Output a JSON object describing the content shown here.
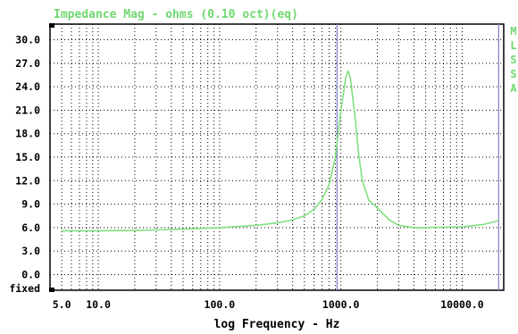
{
  "colors": {
    "background": "#ffffff",
    "plot_border": "#000000",
    "grid": "#000000",
    "trace": "#7fe07f",
    "title": "#6fd86f",
    "side_label": "#6fd86f",
    "cursor_line": "#8080c8",
    "marker": "#000000"
  },
  "chart_data": {
    "type": "line",
    "title": "Impedance Mag - ohms (0.10 oct)(eq)",
    "xlabel": "log Frequency - Hz",
    "ylabel": "",
    "x_scale": "log",
    "xlim": [
      4.0,
      22000.0
    ],
    "ylim": [
      -2.0,
      32.0
    ],
    "x_ticks": [
      5.0,
      10.0,
      100.0,
      1000.0,
      10000.0
    ],
    "x_tick_labels": [
      "5.0",
      "10.0",
      "100.0",
      "1000.0",
      "10000.0"
    ],
    "y_ticks": [
      30.0,
      27.0,
      24.0,
      21.0,
      18.0,
      15.0,
      12.0,
      9.0,
      6.0,
      3.0,
      0.0
    ],
    "y_tick_labels": [
      "30.0",
      "27.0",
      "24.0",
      "21.0",
      "18.0",
      "15.0",
      "12.0",
      "9.0",
      "6.0",
      "3.0",
      "0.0"
    ],
    "y_extra_label": "fixed",
    "grid": true,
    "side_label": "MLSSA",
    "cursors": [
      930,
      20000
    ],
    "series": [
      {
        "x": [
          5,
          10,
          20,
          30,
          50,
          100,
          200,
          300,
          400,
          500,
          600,
          700,
          800,
          900,
          1000,
          1100,
          1150,
          1200,
          1300,
          1400,
          1500,
          1700,
          2000,
          2500,
          3000,
          4000,
          5000,
          7000,
          10000,
          15000,
          20000
        ],
        "values": [
          5.6,
          5.6,
          5.65,
          5.7,
          5.8,
          6.0,
          6.3,
          6.6,
          7.0,
          7.5,
          8.3,
          9.6,
          11.5,
          15.0,
          21.0,
          25.3,
          26.0,
          25.0,
          20.5,
          15.5,
          12.0,
          9.5,
          8.5,
          7.0,
          6.3,
          6.0,
          6.0,
          6.05,
          6.1,
          6.4,
          6.9
        ]
      }
    ]
  }
}
